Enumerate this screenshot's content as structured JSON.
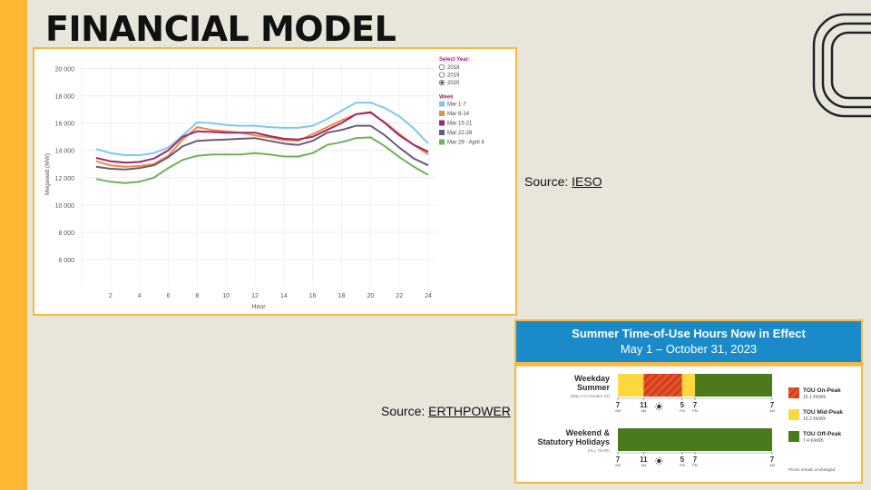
{
  "slide": {
    "title": "FINANCIAL MODEL"
  },
  "sources": [
    {
      "prefix": "Source: ",
      "link": "IESO"
    },
    {
      "prefix": "Source: ",
      "link": "ERTHPOWER"
    }
  ],
  "colors": {
    "accent": "#fdb733",
    "background": "#e8e6da",
    "frame": "#f5b941"
  },
  "chart_data": {
    "type": "line",
    "xlabel": "Hour",
    "ylabel": "Megawatt (MW)",
    "xlim": [
      0,
      24.5
    ],
    "ylim": [
      4000,
      20500
    ],
    "xticks": [
      0,
      2,
      4,
      6,
      8,
      10,
      12,
      14,
      16,
      18,
      20,
      22,
      24
    ],
    "yticks": [
      6000,
      8000,
      10000,
      12000,
      14000,
      16000,
      18000,
      20000
    ],
    "ytick_labels": [
      "6 000",
      "8 000",
      "10 000",
      "12 000",
      "14 000",
      "16 000",
      "18 000",
      "20 000"
    ],
    "grid": true,
    "legend": {
      "placement": "top-right",
      "year_title": "Select Year:",
      "years": [
        "2018",
        "2019",
        "2020"
      ],
      "selected_year": "2020",
      "week_title": "Week"
    },
    "x": [
      1,
      2,
      3,
      4,
      5,
      6,
      7,
      8,
      9,
      10,
      11,
      12,
      13,
      14,
      15,
      16,
      17,
      18,
      19,
      20,
      21,
      22,
      23,
      24
    ],
    "series": [
      {
        "name": "Mar 1-7",
        "color": "#7ec8ee",
        "values": [
          14100,
          13800,
          13650,
          13650,
          13800,
          14200,
          15100,
          16050,
          16000,
          15850,
          15800,
          15800,
          15700,
          15650,
          15650,
          15800,
          16300,
          16900,
          17500,
          17500,
          17100,
          16500,
          15600,
          14500
        ]
      },
      {
        "name": "Mar 8-14",
        "color": "#f08a3e",
        "values": [
          13200,
          12900,
          12800,
          12850,
          13000,
          13600,
          14800,
          15700,
          15500,
          15400,
          15300,
          15100,
          14950,
          14750,
          14700,
          15200,
          15700,
          16200,
          16650,
          16750,
          16050,
          15200,
          14400,
          13700
        ]
      },
      {
        "name": "Mar 15-21",
        "color": "#9c2a6e",
        "values": [
          13450,
          13200,
          13100,
          13150,
          13400,
          14000,
          15000,
          15400,
          15350,
          15300,
          15300,
          15300,
          15050,
          14850,
          14800,
          15000,
          15500,
          16000,
          16650,
          16800,
          16000,
          15100,
          14400,
          13900
        ]
      },
      {
        "name": "Mar 22-28",
        "color": "#6b5a78",
        "values": [
          12800,
          12650,
          12600,
          12700,
          12900,
          13500,
          14300,
          14700,
          14750,
          14800,
          14850,
          14900,
          14700,
          14500,
          14400,
          14700,
          15300,
          15500,
          15800,
          15800,
          15100,
          14200,
          13400,
          12900
        ]
      },
      {
        "name": "Mar 29 - April 4",
        "color": "#6bb35a",
        "values": [
          11900,
          11700,
          11600,
          11700,
          12000,
          12700,
          13300,
          13600,
          13700,
          13700,
          13700,
          13800,
          13700,
          13550,
          13550,
          13800,
          14400,
          14600,
          14900,
          14950,
          14300,
          13500,
          12800,
          12200
        ]
      }
    ]
  },
  "tou": {
    "title": "Summer Time-of-Use Hours Now in Effect",
    "subtitle": "May 1 – October 31, 2023",
    "rows": [
      {
        "title_line1": "Weekday",
        "title_line2": "Summer",
        "note": "(May 1 to October 31)"
      },
      {
        "title_line1": "Weekend &",
        "title_line2": "Statutory Holidays",
        "note": "(ALL YEAR)"
      }
    ],
    "time_labels": [
      {
        "num": "7",
        "ampm": "AM"
      },
      {
        "num": "11",
        "ampm": "AM"
      },
      {
        "num": "5",
        "ampm": "PM"
      },
      {
        "num": "7",
        "ampm": "PM"
      },
      {
        "num": "7",
        "ampm": "AM"
      }
    ],
    "legend": [
      {
        "label": "TOU On-Peak",
        "rate": "15.1 ¢/kWh",
        "color": "#e4502a"
      },
      {
        "label": "TOU Mid-Peak",
        "rate": "10.2 ¢/kWh",
        "color": "#fcd840"
      },
      {
        "label": "TOU Off-Peak",
        "rate": "7.4 ¢/kWh",
        "color": "#4a7a1c"
      }
    ],
    "footnote": "Prices remain unchanged.",
    "colors": {
      "header": "#1a8bc8",
      "on_peak": "#e4502a",
      "mid_peak": "#fcd840",
      "off_peak": "#4a7a1c"
    }
  }
}
